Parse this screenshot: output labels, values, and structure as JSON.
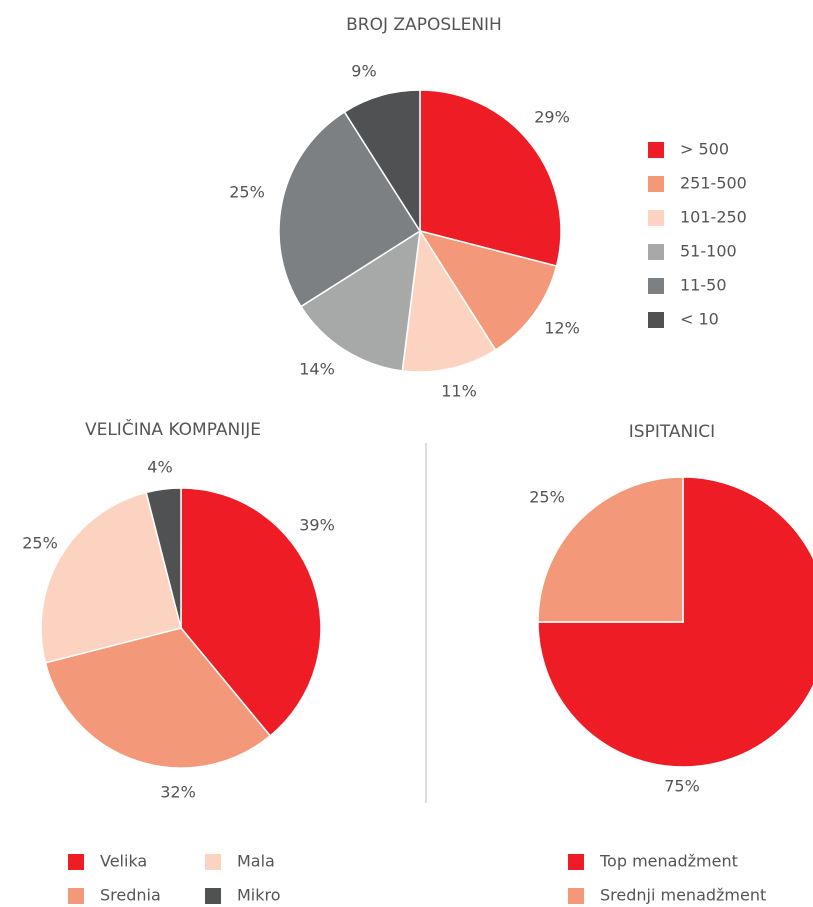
{
  "chart_data": [
    {
      "type": "pie",
      "title": "BROJ ZAPOSLENIH",
      "categories": [
        "> 500",
        "251-500",
        "101-250",
        "51-100",
        "11-50",
        "< 10"
      ],
      "values": [
        29,
        12,
        11,
        14,
        25,
        9
      ],
      "value_labels": [
        "29%",
        "12%",
        "11%",
        "14%",
        "25%",
        "9%"
      ],
      "colors": [
        "#ee1c25",
        "#f4987a",
        "#fcd3c1",
        "#a7a9a8",
        "#7d8083",
        "#4f5153"
      ]
    },
    {
      "type": "pie",
      "title": "VELIČINA KOMPANIJE",
      "categories": [
        "Velika",
        "Srednia",
        "Mala",
        "Mikro"
      ],
      "values": [
        39,
        32,
        25,
        4
      ],
      "value_labels": [
        "39%",
        "32%",
        "25%",
        "4%"
      ],
      "colors": [
        "#ee1c25",
        "#f4987a",
        "#fcd3c1",
        "#4f5153"
      ]
    },
    {
      "type": "pie",
      "title": "ISPITANICI",
      "categories": [
        "Top menadžment",
        "Srednji menadžment"
      ],
      "values": [
        75,
        25
      ],
      "value_labels": [
        "75%",
        "25%"
      ],
      "colors": [
        "#ee1c25",
        "#f4987a"
      ]
    }
  ]
}
